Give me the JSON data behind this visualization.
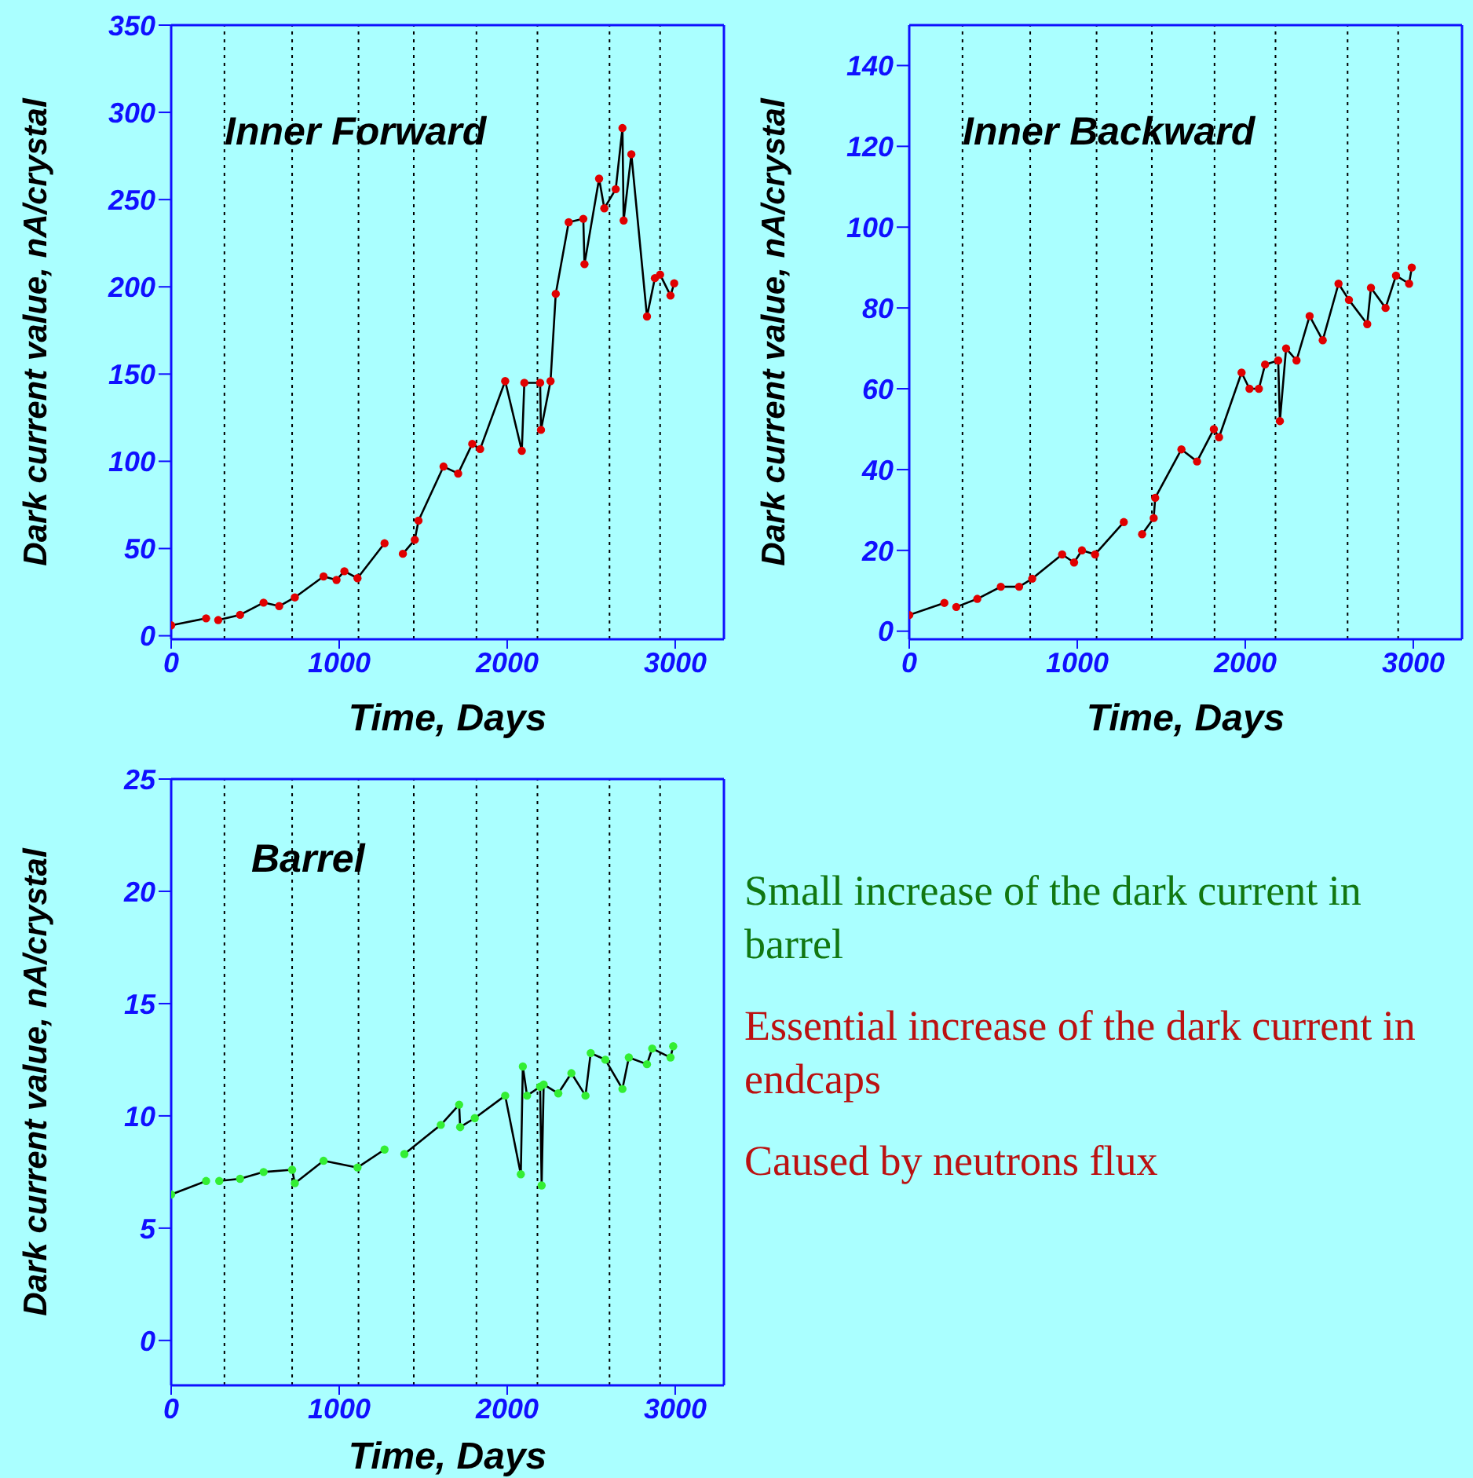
{
  "chart_data": [
    {
      "type": "line",
      "title": "Inner Forward",
      "xlabel": "Time, Days",
      "ylabel": "Dark current value,  nA/crystal",
      "xlim": [
        0,
        3290
      ],
      "xticks": [
        0,
        1000,
        2000,
        3000
      ],
      "ylim": [
        -2,
        350
      ],
      "yticks": [
        0,
        50,
        100,
        150,
        200,
        250,
        300,
        350
      ],
      "ref_lines": [
        {
          "axis": "x",
          "value": 317,
          "line_style": "dotted"
        },
        {
          "axis": "x",
          "value": 720,
          "line_style": "dotted"
        },
        {
          "axis": "x",
          "value": 1115,
          "line_style": "dotted"
        },
        {
          "axis": "x",
          "value": 1444,
          "line_style": "dotted"
        },
        {
          "axis": "x",
          "value": 1817,
          "line_style": "dotted"
        },
        {
          "axis": "x",
          "value": 2180,
          "line_style": "dotted"
        },
        {
          "axis": "x",
          "value": 2609,
          "line_style": "dotted"
        },
        {
          "axis": "x",
          "value": 2910,
          "line_style": "dotted"
        }
      ],
      "series": [
        {
          "type": "scatter",
          "marker": "circle",
          "color": "#e00000",
          "x": [
            0,
            208,
            244,
            280,
            410,
            550,
            643,
            736,
            907,
            984,
            1031,
            1109,
            1270,
            1325,
            1379,
            1450,
            1472,
            1621,
            1708,
            1792,
            1839,
            1988,
            2087,
            2102,
            2196,
            2201,
            2258,
            2289,
            2366,
            2453,
            2460,
            2547,
            2578,
            2646,
            2686,
            2693,
            2739,
            2832,
            2879,
            2910,
            2972,
            2994
          ],
          "values": [
            6,
            10,
            null,
            9,
            12,
            19,
            17,
            22,
            34,
            32,
            37,
            33,
            53,
            null,
            47,
            55,
            66,
            97,
            93,
            110,
            107,
            146,
            106,
            145,
            145,
            118,
            146,
            196,
            237,
            239,
            213,
            262,
            245,
            256,
            291,
            238,
            276,
            183,
            205,
            207,
            195,
            202
          ]
        },
        {
          "type": "line",
          "color": "#000000",
          "x": [
            0,
            208,
            244,
            280,
            410,
            550,
            643,
            736,
            907,
            984,
            1031,
            1109,
            1270,
            1325,
            1379,
            1450,
            1472,
            1621,
            1708,
            1792,
            1839,
            1988,
            2087,
            2102,
            2196,
            2201,
            2258,
            2289,
            2366,
            2453,
            2460,
            2547,
            2578,
            2646,
            2686,
            2693,
            2739,
            2832,
            2879,
            2910,
            2972,
            2994
          ],
          "values": [
            6,
            10,
            null,
            9,
            12,
            19,
            17,
            22,
            34,
            32,
            37,
            33,
            53,
            null,
            47,
            55,
            66,
            97,
            93,
            110,
            107,
            146,
            106,
            145,
            145,
            118,
            146,
            196,
            237,
            239,
            213,
            262,
            245,
            256,
            291,
            238,
            276,
            183,
            205,
            207,
            195,
            202
          ]
        }
      ]
    },
    {
      "type": "line",
      "title": "Inner Backward",
      "xlabel": "Time, Days",
      "ylabel": "Dark current value,  nA/crystal",
      "xlim": [
        0,
        3290
      ],
      "xticks": [
        0,
        1000,
        2000,
        3000
      ],
      "ylim": [
        -2,
        150
      ],
      "yticks": [
        0,
        20,
        40,
        60,
        80,
        100,
        120,
        140
      ],
      "ref_lines": [
        {
          "axis": "x",
          "value": 317,
          "line_style": "dotted"
        },
        {
          "axis": "x",
          "value": 720,
          "line_style": "dotted"
        },
        {
          "axis": "x",
          "value": 1115,
          "line_style": "dotted"
        },
        {
          "axis": "x",
          "value": 1444,
          "line_style": "dotted"
        },
        {
          "axis": "x",
          "value": 1817,
          "line_style": "dotted"
        },
        {
          "axis": "x",
          "value": 2180,
          "line_style": "dotted"
        },
        {
          "axis": "x",
          "value": 2609,
          "line_style": "dotted"
        },
        {
          "axis": "x",
          "value": 2910,
          "line_style": "dotted"
        }
      ],
      "series": [
        {
          "type": "scatter",
          "marker": "circle",
          "color": "#e00000",
          "x": [
            0,
            209,
            245,
            280,
            405,
            545,
            654,
            732,
            910,
            981,
            1028,
            1106,
            1277,
            1330,
            1386,
            1455,
            1464,
            1620,
            1713,
            1813,
            1844,
            1978,
            2025,
            2081,
            2118,
            2196,
            2206,
            2243,
            2305,
            2383,
            2461,
            2555,
            2617,
            2726,
            2748,
            2835,
            2897,
            2975,
            2991
          ],
          "values": [
            4,
            7,
            null,
            6,
            8,
            11,
            11,
            13,
            19,
            17,
            20,
            19,
            27,
            null,
            24,
            28,
            33,
            45,
            42,
            50,
            48,
            64,
            60,
            60,
            66,
            67,
            52,
            70,
            67,
            78,
            72,
            86,
            82,
            76,
            85,
            80,
            88,
            86,
            90
          ]
        },
        {
          "type": "line",
          "color": "#000000",
          "x": [
            0,
            209,
            245,
            280,
            405,
            545,
            654,
            732,
            910,
            981,
            1028,
            1106,
            1277,
            1330,
            1386,
            1455,
            1464,
            1620,
            1713,
            1813,
            1844,
            1978,
            2025,
            2081,
            2118,
            2196,
            2206,
            2243,
            2305,
            2383,
            2461,
            2555,
            2617,
            2726,
            2748,
            2835,
            2897,
            2975,
            2991
          ],
          "values": [
            4,
            7,
            null,
            6,
            8,
            11,
            11,
            13,
            19,
            17,
            20,
            19,
            27,
            null,
            24,
            28,
            33,
            45,
            42,
            50,
            48,
            64,
            60,
            60,
            66,
            67,
            52,
            70,
            67,
            78,
            72,
            86,
            82,
            76,
            85,
            80,
            88,
            86,
            90
          ]
        }
      ]
    },
    {
      "type": "line",
      "title": "Barrel",
      "xlabel": "Time, Days",
      "ylabel": "Dark current value,  nA/crystal",
      "xlim": [
        0,
        3290
      ],
      "xticks": [
        0,
        1000,
        2000,
        3000
      ],
      "ylim": [
        -2,
        25
      ],
      "yticks": [
        0,
        5,
        10,
        15,
        20,
        25
      ],
      "ref_lines": [
        {
          "axis": "x",
          "value": 317,
          "line_style": "dotted"
        },
        {
          "axis": "x",
          "value": 720,
          "line_style": "dotted"
        },
        {
          "axis": "x",
          "value": 1115,
          "line_style": "dotted"
        },
        {
          "axis": "x",
          "value": 1444,
          "line_style": "dotted"
        },
        {
          "axis": "x",
          "value": 1817,
          "line_style": "dotted"
        },
        {
          "axis": "x",
          "value": 2180,
          "line_style": "dotted"
        },
        {
          "axis": "x",
          "value": 2609,
          "line_style": "dotted"
        },
        {
          "axis": "x",
          "value": 2910,
          "line_style": "dotted"
        }
      ],
      "series": [
        {
          "type": "scatter",
          "marker": "circle",
          "color": "#33ee33",
          "x": [
            0,
            208,
            247,
            286,
            410,
            550,
            720,
            736,
            907,
            1109,
            1270,
            1330,
            1388,
            1605,
            1714,
            1720,
            1807,
            1988,
            2081,
            2093,
            2118,
            2196,
            2205,
            2217,
            2304,
            2382,
            2466,
            2497,
            2584,
            2686,
            2724,
            2832,
            2863,
            2972,
            2988
          ],
          "values": [
            6.5,
            7.1,
            null,
            7.1,
            7.2,
            7.5,
            7.6,
            7.0,
            8.0,
            7.7,
            8.5,
            null,
            8.3,
            9.6,
            10.5,
            9.5,
            9.9,
            10.9,
            7.4,
            12.2,
            10.9,
            11.3,
            6.9,
            11.4,
            11.0,
            11.9,
            10.9,
            12.8,
            12.5,
            11.2,
            12.6,
            12.3,
            13.0,
            12.6,
            13.1
          ]
        },
        {
          "type": "line",
          "color": "#000000",
          "x": [
            0,
            208,
            247,
            286,
            410,
            550,
            720,
            736,
            907,
            1109,
            1270,
            1330,
            1388,
            1605,
            1714,
            1720,
            1807,
            1988,
            2081,
            2093,
            2118,
            2196,
            2205,
            2217,
            2304,
            2382,
            2466,
            2497,
            2584,
            2686,
            2724,
            2832,
            2863,
            2972,
            2988
          ],
          "values": [
            6.5,
            7.1,
            null,
            7.1,
            7.2,
            7.5,
            7.6,
            7.0,
            8.0,
            7.7,
            8.5,
            null,
            8.3,
            9.6,
            10.5,
            9.5,
            9.9,
            10.9,
            7.4,
            12.2,
            10.9,
            11.3,
            6.9,
            11.4,
            11.0,
            11.9,
            10.9,
            12.8,
            12.5,
            11.2,
            12.6,
            12.3,
            13.0,
            12.6,
            13.1
          ]
        }
      ]
    },
    {
      "type": "other",
      "annotations": [
        "Small increase of the dark current in barrel",
        "Essential increase of the dark current in endcaps",
        "Caused by neutrons flux"
      ],
      "colors": [
        "#117711",
        "#bb1111",
        "#bb1111"
      ]
    }
  ]
}
